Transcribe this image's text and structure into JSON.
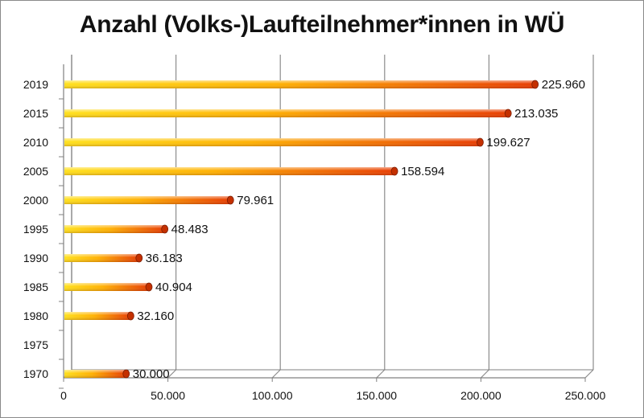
{
  "chart_data": {
    "type": "bar",
    "orientation": "horizontal",
    "title": "Anzahl (Volks-)Laufteilnehmer*innen in WÜ",
    "xlabel": "",
    "ylabel": "",
    "categories": [
      "2019",
      "2015",
      "2010",
      "2005",
      "2000",
      "1995",
      "1990",
      "1985",
      "1980",
      "1975",
      "1970"
    ],
    "values": [
      225960,
      213035,
      199627,
      158594,
      79961,
      48483,
      36183,
      40904,
      32160,
      null,
      30000
    ],
    "value_labels": [
      "225.960",
      "213.035",
      "199.627",
      "158.594",
      "79.961",
      "48.483",
      "36.183",
      "40.904",
      "32.160",
      "",
      "30.000"
    ],
    "xlim": [
      0,
      250000
    ],
    "x_ticks": [
      0,
      50000,
      100000,
      150000,
      200000,
      250000
    ],
    "x_tick_labels": [
      "0",
      "50.000",
      "100.000",
      "150.000",
      "200.000",
      "250.000"
    ],
    "grid": true,
    "legend": "none",
    "colors": {
      "bar_start": "#ffe01a",
      "bar_end": "#e83b00",
      "grid": "#8c8c8c",
      "axis": "#808080"
    }
  }
}
